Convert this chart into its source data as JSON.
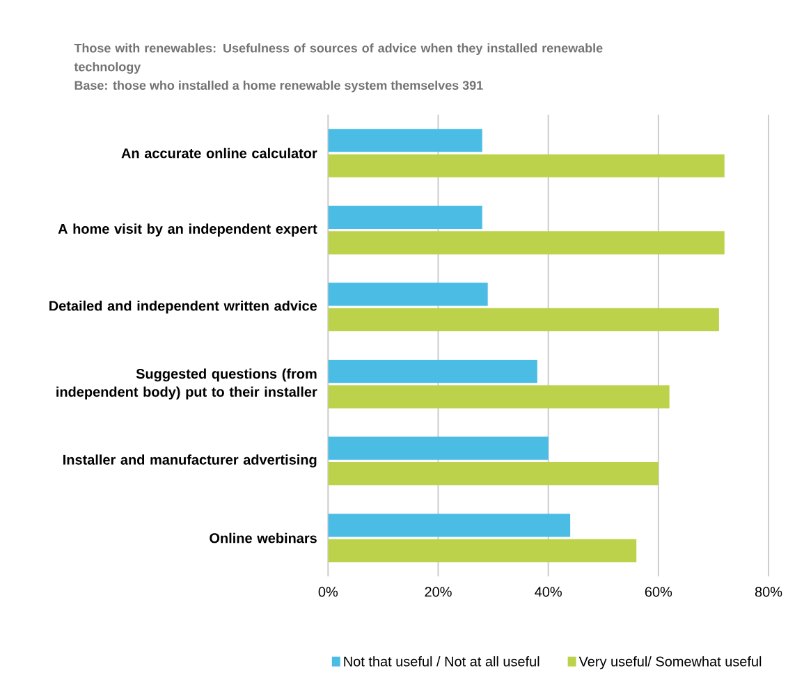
{
  "chart_data": {
    "type": "bar",
    "orientation": "horizontal",
    "title": "Those with renewables: Usefulness of sources of advice when they installed renewable technology",
    "subtitle": "Base: those who installed a home renewable system themselves 391",
    "categories": [
      "An accurate online calculator",
      "A home visit by an independent expert",
      "Detailed and independent written advice",
      "Suggested questions (from independent body) put to their installer",
      "Installer and manufacturer advertising",
      "Online webinars"
    ],
    "series": [
      {
        "name": "Not that useful / Not at all useful",
        "color": "#4bbde4",
        "values": [
          28,
          28,
          29,
          38,
          40,
          44
        ]
      },
      {
        "name": "Very useful/ Somewhat useful",
        "color": "#bcd24a",
        "values": [
          72,
          72,
          71,
          62,
          60,
          56
        ]
      }
    ],
    "xlim": [
      0,
      80
    ],
    "xticks": [
      {
        "value": 0,
        "label": "0%"
      },
      {
        "value": 20,
        "label": "20%"
      },
      {
        "value": 40,
        "label": "40%"
      },
      {
        "value": 60,
        "label": "60%"
      },
      {
        "value": 80,
        "label": "80%"
      }
    ],
    "grid": "x",
    "legend": "bottom"
  }
}
